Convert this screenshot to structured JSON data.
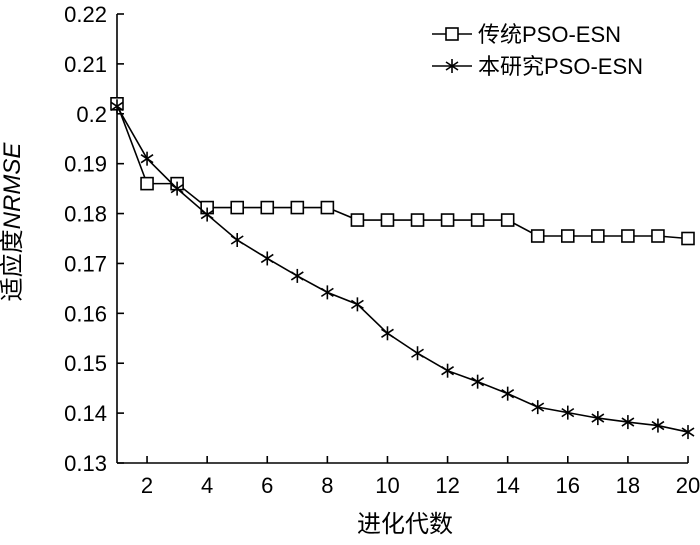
{
  "chart_data": {
    "type": "line",
    "xlabel": "进化代数",
    "ylabel_prefix": "适应度",
    "ylabel_italic": "NRMSE",
    "xlim": [
      1,
      20
    ],
    "ylim": [
      0.13,
      0.22
    ],
    "xticks": [
      2,
      4,
      6,
      8,
      10,
      12,
      14,
      16,
      18,
      20
    ],
    "yticks": [
      0.13,
      0.14,
      0.15,
      0.16,
      0.17,
      0.18,
      0.19,
      0.2,
      0.21,
      0.22
    ],
    "ytick_labels": [
      "0.13",
      "0.14",
      "0.15",
      "0.16",
      "0.17",
      "0.18",
      "0.19",
      "0.2",
      "0.21",
      "0.22"
    ],
    "xtick_labels": [
      "2",
      "4",
      "6",
      "8",
      "10",
      "12",
      "14",
      "16",
      "18",
      "20"
    ],
    "grid": false,
    "legend_position": "top-right",
    "x": [
      1,
      2,
      3,
      4,
      5,
      6,
      7,
      8,
      9,
      10,
      11,
      12,
      13,
      14,
      15,
      16,
      17,
      18,
      19,
      20
    ],
    "series": [
      {
        "name": "传统PSO-ESN",
        "marker": "square",
        "values": [
          0.202,
          0.186,
          0.186,
          0.1812,
          0.1812,
          0.1812,
          0.1812,
          0.1812,
          0.1787,
          0.1787,
          0.1787,
          0.1787,
          0.1787,
          0.1787,
          0.1755,
          0.1755,
          0.1755,
          0.1755,
          0.1755,
          0.175
        ]
      },
      {
        "name": "本研究PSO-ESN",
        "marker": "asterisk",
        "values": [
          0.2015,
          0.191,
          0.185,
          0.1798,
          0.1747,
          0.171,
          0.1675,
          0.1642,
          0.1618,
          0.156,
          0.152,
          0.1485,
          0.1463,
          0.1439,
          0.1412,
          0.1401,
          0.139,
          0.1382,
          0.1375,
          0.1362
        ]
      }
    ]
  }
}
